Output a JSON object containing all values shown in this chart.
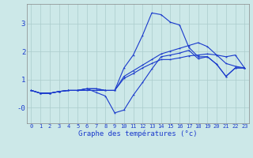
{
  "xlabel": "Graphe des températures (°c)",
  "background_color": "#cce8e8",
  "grid_color": "#aacccc",
  "line_color": "#1a3acc",
  "x_ticks": [
    0,
    1,
    2,
    3,
    4,
    5,
    6,
    7,
    8,
    9,
    10,
    11,
    12,
    13,
    14,
    15,
    16,
    17,
    18,
    19,
    20,
    21,
    22,
    23
  ],
  "y_ticks": [
    3,
    2,
    1,
    0
  ],
  "y_tick_labels": [
    "3",
    "2",
    "1",
    "-0"
  ],
  "ylim": [
    -0.55,
    3.7
  ],
  "xlim": [
    -0.5,
    23.5
  ],
  "line1_x": [
    0,
    1,
    2,
    3,
    4,
    5,
    6,
    7,
    8,
    9,
    10,
    11,
    12,
    13,
    14,
    15,
    16,
    17,
    18,
    19,
    20,
    21,
    22,
    23
  ],
  "line1_y": [
    0.62,
    0.52,
    0.52,
    0.58,
    0.62,
    0.62,
    0.62,
    0.62,
    0.62,
    0.62,
    1.42,
    1.88,
    2.58,
    3.38,
    3.32,
    3.05,
    2.95,
    2.15,
    1.82,
    1.82,
    1.55,
    1.12,
    1.42,
    1.42
  ],
  "line2_x": [
    0,
    1,
    2,
    3,
    4,
    5,
    6,
    7,
    8,
    9,
    10,
    11,
    12,
    13,
    14,
    15,
    16,
    17,
    18,
    19,
    20,
    21,
    22,
    23
  ],
  "line2_y": [
    0.62,
    0.52,
    0.52,
    0.58,
    0.62,
    0.62,
    0.68,
    0.55,
    0.42,
    -0.18,
    -0.08,
    0.45,
    0.9,
    1.38,
    1.82,
    1.88,
    1.95,
    2.05,
    1.75,
    1.82,
    1.55,
    1.12,
    1.42,
    1.42
  ],
  "line3_x": [
    0,
    1,
    2,
    3,
    4,
    5,
    6,
    7,
    8,
    9,
    10,
    11,
    12,
    13,
    14,
    15,
    16,
    17,
    18,
    19,
    20,
    21,
    22,
    23
  ],
  "line3_y": [
    0.62,
    0.52,
    0.52,
    0.58,
    0.62,
    0.62,
    0.68,
    0.68,
    0.62,
    0.62,
    1.05,
    1.22,
    1.42,
    1.58,
    1.72,
    1.72,
    1.78,
    1.85,
    1.88,
    1.92,
    1.88,
    1.82,
    1.88,
    1.42
  ],
  "line4_x": [
    0,
    1,
    2,
    3,
    4,
    5,
    6,
    7,
    8,
    9,
    10,
    11,
    12,
    13,
    14,
    15,
    16,
    17,
    18,
    19,
    20,
    21,
    22,
    23
  ],
  "line4_y": [
    0.62,
    0.52,
    0.52,
    0.58,
    0.62,
    0.62,
    0.68,
    0.68,
    0.62,
    0.62,
    1.12,
    1.32,
    1.52,
    1.72,
    1.92,
    2.02,
    2.12,
    2.22,
    2.32,
    2.18,
    1.88,
    1.58,
    1.48,
    1.42
  ]
}
